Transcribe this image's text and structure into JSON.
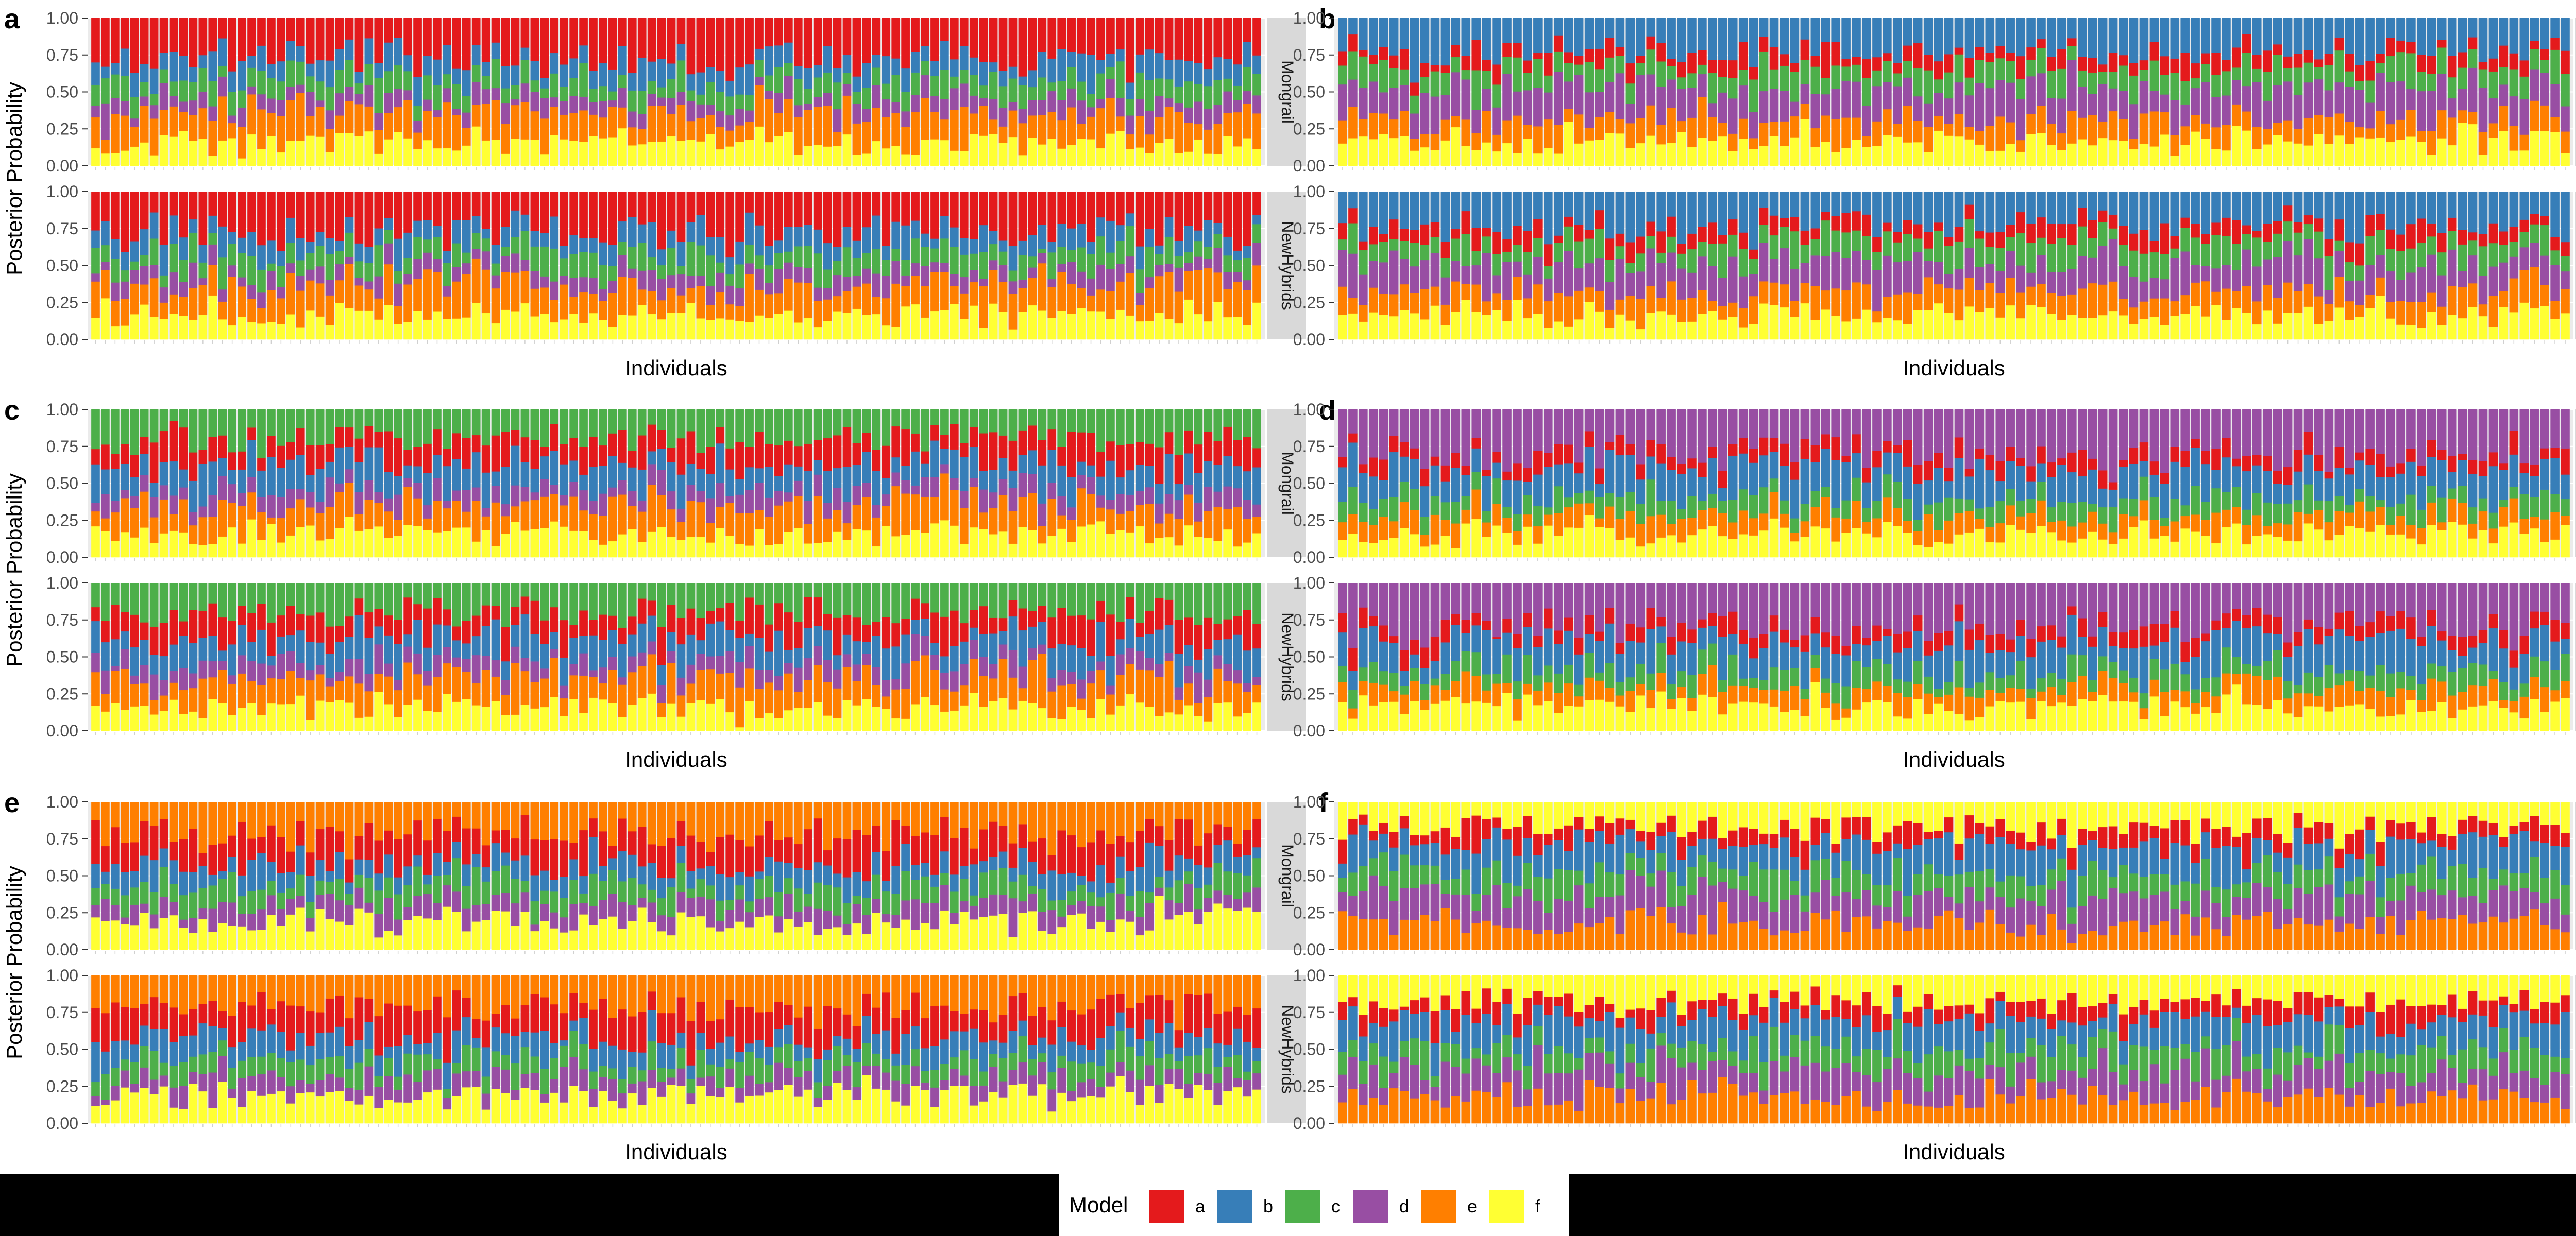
{
  "figure": {
    "y_axis_label": "Posterior Probability",
    "x_axis_label": "Individuals",
    "legend_title": "Model",
    "legend_labels": [
      "a",
      "b",
      "c",
      "d",
      "e",
      "f"
    ],
    "colors": {
      "a": "#e41a1c",
      "b": "#377eb8",
      "c": "#4daf4a",
      "d": "#984ea3",
      "e": "#ff7f00",
      "f": "#ffff33"
    },
    "facet_strip_color": "#d9d9d9",
    "panel_background": "#ebebeb",
    "footer_background": "#000000"
  },
  "chart_data": [
    {
      "type": "bar",
      "stacked": true,
      "panel_label": "a",
      "n_individuals": 120,
      "ylim": [
        0,
        1
      ],
      "yticks": [
        "0.00",
        "0.25",
        "0.50",
        "0.75",
        "1.00"
      ],
      "stack_order_bottom_to_top": [
        "f",
        "e",
        "d",
        "c",
        "b",
        "a"
      ],
      "facets": [
        "Mongrail",
        "NewHybrids"
      ],
      "series_mean": {
        "a": 0.28,
        "b": 0.13,
        "c": 0.13,
        "d": 0.1,
        "e": 0.2,
        "f": 0.16
      },
      "seed": 101
    },
    {
      "type": "bar",
      "stacked": true,
      "panel_label": "b",
      "n_individuals": 120,
      "ylim": [
        0,
        1
      ],
      "yticks": [
        "0.00",
        "0.25",
        "0.50",
        "0.75",
        "1.00"
      ],
      "stack_order_bottom_to_top": [
        "f",
        "e",
        "d",
        "c",
        "a",
        "b"
      ],
      "facets": [
        "Mongrail",
        "NewHybrids"
      ],
      "series_mean": {
        "a": 0.1,
        "b": 0.23,
        "c": 0.15,
        "d": 0.21,
        "e": 0.15,
        "f": 0.16
      },
      "seed": 202
    },
    {
      "type": "bar",
      "stacked": true,
      "panel_label": "c",
      "n_individuals": 120,
      "ylim": [
        0,
        1
      ],
      "yticks": [
        "0.00",
        "0.25",
        "0.50",
        "0.75",
        "1.00"
      ],
      "stack_order_bottom_to_top": [
        "f",
        "e",
        "d",
        "b",
        "a",
        "c"
      ],
      "facets": [
        "Mongrail",
        "NewHybrids"
      ],
      "series_mean": {
        "a": 0.17,
        "b": 0.17,
        "c": 0.2,
        "d": 0.11,
        "e": 0.19,
        "f": 0.16
      },
      "seed": 303
    },
    {
      "type": "bar",
      "stacked": true,
      "panel_label": "d",
      "n_individuals": 120,
      "ylim": [
        0,
        1
      ],
      "yticks": [
        "0.00",
        "0.25",
        "0.50",
        "0.75",
        "1.00"
      ],
      "stack_order_bottom_to_top": [
        "f",
        "e",
        "c",
        "b",
        "a",
        "d"
      ],
      "facets": [
        "Mongrail",
        "NewHybrids"
      ],
      "series_mean": {
        "a": 0.1,
        "b": 0.2,
        "c": 0.12,
        "d": 0.3,
        "e": 0.12,
        "f": 0.16
      },
      "seed": 404
    },
    {
      "type": "bar",
      "stacked": true,
      "panel_label": "e",
      "n_individuals": 120,
      "ylim": [
        0,
        1
      ],
      "yticks": [
        "0.00",
        "0.25",
        "0.50",
        "0.75",
        "1.00"
      ],
      "stack_order_bottom_to_top": [
        "f",
        "d",
        "c",
        "b",
        "a",
        "e"
      ],
      "facets": [
        "Mongrail",
        "NewHybrids"
      ],
      "series_mean": {
        "a": 0.2,
        "b": 0.14,
        "c": 0.13,
        "d": 0.12,
        "e": 0.22,
        "f": 0.19
      },
      "seed": 505
    },
    {
      "type": "bar",
      "stacked": true,
      "panel_label": "f",
      "n_individuals": 120,
      "ylim": [
        0,
        1
      ],
      "yticks": [
        "0.00",
        "0.25",
        "0.50",
        "0.75",
        "1.00"
      ],
      "stack_order_bottom_to_top": [
        "e",
        "d",
        "c",
        "b",
        "a",
        "f"
      ],
      "facets": [
        "Mongrail",
        "NewHybrids"
      ],
      "series_mean": {
        "a": 0.1,
        "b": 0.17,
        "c": 0.13,
        "d": 0.16,
        "e": 0.15,
        "f": 0.15
      },
      "seed": 606
    }
  ]
}
